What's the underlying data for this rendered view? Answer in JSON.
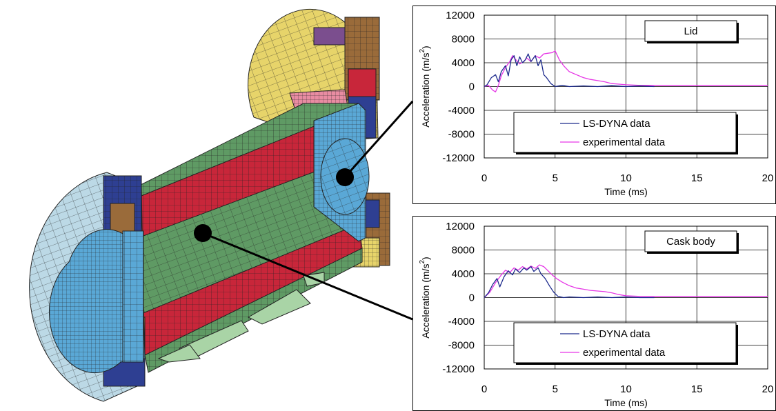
{
  "figure": {
    "illustration": "finite-element mesh cutaway of cask",
    "colors": {
      "mesh_outline": "#2a2a2a",
      "green": "#5f9a64",
      "red": "#c8263a",
      "blue": "#5aa8d6",
      "light_blue": "#bcd9e6",
      "yellow": "#e7d46a",
      "navy": "#2e3f92",
      "brown": "#9a6b3a",
      "pink": "#e88ca2",
      "pale_green": "#a9d4a6",
      "callout_line": "#000000"
    }
  },
  "chart_data": [
    {
      "type": "line",
      "title": "",
      "annotation": "Lid",
      "xlabel": "Time (ms)",
      "ylabel": "Acceleration (m/s",
      "ylabel_superscript": "2",
      "ylabel_close": ")",
      "xlim": [
        0,
        20
      ],
      "ylim": [
        -12000,
        12000
      ],
      "xticks": [
        "0",
        "5",
        "10",
        "15",
        "20"
      ],
      "yticks": [
        "12000",
        "8000",
        "4000",
        "0",
        "-4000",
        "-8000",
        "-12000"
      ],
      "grid": "horizontal",
      "legend_placement": "lower-center",
      "series": [
        {
          "name": "LS-DYNA data",
          "color": "#1c2a8c",
          "x": [
            0,
            0.2,
            0.5,
            0.8,
            1.0,
            1.2,
            1.5,
            1.7,
            1.9,
            2.1,
            2.3,
            2.5,
            2.7,
            2.9,
            3.1,
            3.3,
            3.6,
            3.8,
            4.0,
            4.2,
            4.4,
            4.7,
            5.0,
            5.5,
            6.0,
            7.0,
            8.0,
            9.0,
            10.0,
            11.0,
            12.0
          ],
          "y": [
            0,
            300,
            1500,
            2000,
            800,
            2500,
            3500,
            1800,
            4500,
            5200,
            3500,
            5000,
            4000,
            4500,
            5500,
            4200,
            5200,
            3500,
            4500,
            2000,
            1500,
            500,
            0,
            200,
            0,
            100,
            0,
            150,
            0,
            100,
            0
          ]
        },
        {
          "name": "experimental data",
          "color": "#e636e6",
          "x": [
            0,
            0.3,
            0.6,
            0.8,
            1.0,
            1.2,
            1.5,
            1.8,
            2.0,
            2.2,
            2.5,
            2.8,
            3.0,
            3.3,
            3.6,
            3.9,
            4.2,
            4.5,
            4.8,
            5.0,
            5.3,
            5.6,
            6.0,
            6.5,
            7.0,
            7.5,
            8.0,
            8.5,
            9.0,
            9.5,
            10.0,
            11.0,
            12.0,
            14.0,
            16.0,
            18.0,
            20.0
          ],
          "y": [
            0,
            200,
            -600,
            -900,
            200,
            1800,
            3200,
            4200,
            5200,
            4600,
            3800,
            4200,
            4800,
            4200,
            5200,
            4800,
            5500,
            5600,
            5700,
            6000,
            4500,
            3500,
            2500,
            2000,
            1500,
            1200,
            1000,
            800,
            500,
            400,
            300,
            200,
            200,
            200,
            200,
            200,
            200
          ]
        }
      ]
    },
    {
      "type": "line",
      "title": "",
      "annotation": "Cask body",
      "xlabel": "Time (ms)",
      "ylabel": "Acceleration (m/s",
      "ylabel_superscript": "2",
      "ylabel_close": ")",
      "xlim": [
        0,
        20
      ],
      "ylim": [
        -12000,
        12000
      ],
      "xticks": [
        "0",
        "5",
        "10",
        "15",
        "20"
      ],
      "yticks": [
        "12000",
        "8000",
        "4000",
        "0",
        "-4000",
        "-8000",
        "-12000"
      ],
      "grid": "horizontal",
      "legend_placement": "lower-center",
      "series": [
        {
          "name": "LS-DYNA data",
          "color": "#1c2a8c",
          "x": [
            0,
            0.3,
            0.6,
            0.9,
            1.1,
            1.4,
            1.7,
            2.0,
            2.2,
            2.5,
            2.8,
            3.0,
            3.3,
            3.5,
            3.8,
            4.0,
            4.3,
            4.6,
            4.9,
            5.2,
            5.6,
            6.0,
            7.0,
            8.0,
            9.0,
            10.0,
            11.0,
            12.0
          ],
          "y": [
            0,
            800,
            2200,
            3200,
            1800,
            3500,
            4500,
            3800,
            4800,
            4200,
            5000,
            4600,
            5200,
            4400,
            5000,
            4000,
            3200,
            2000,
            900,
            200,
            0,
            100,
            0,
            100,
            0,
            100,
            0,
            0
          ]
        },
        {
          "name": "experimental data",
          "color": "#e636e6",
          "x": [
            0,
            0.4,
            0.8,
            1.2,
            1.5,
            1.8,
            2.1,
            2.4,
            2.7,
            3.0,
            3.3,
            3.6,
            3.9,
            4.2,
            4.5,
            4.8,
            5.1,
            5.5,
            6.0,
            6.5,
            7.0,
            7.5,
            8.0,
            8.5,
            9.0,
            9.5,
            10.0,
            11.0,
            12.0,
            14.0,
            16.0,
            18.0,
            20.0
          ],
          "y": [
            0,
            900,
            2500,
            3800,
            4600,
            4200,
            5000,
            4600,
            5200,
            4800,
            5300,
            4900,
            5500,
            5200,
            4500,
            3800,
            3200,
            2600,
            2000,
            1600,
            1400,
            1200,
            1100,
            1000,
            800,
            500,
            300,
            200,
            200,
            200,
            200,
            200,
            200
          ]
        }
      ]
    }
  ]
}
